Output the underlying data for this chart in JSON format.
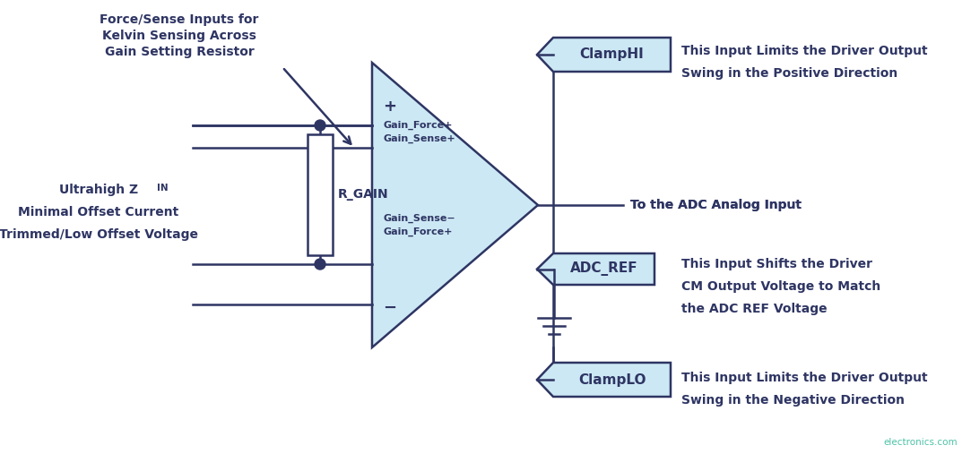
{
  "bg_color": "#ffffff",
  "dark_color": "#2e3563",
  "light_blue": "#cce8f4",
  "teal_color": "#2db898",
  "fig_width": 10.73,
  "fig_height": 5.07,
  "dpi": 100,
  "texts": {
    "force_sense_line1": "Force/Sense Inputs for",
    "force_sense_line2": "Kelvin Sensing Across",
    "force_sense_line3": "Gain Setting Resistor",
    "ultrahigh_z": "Ultrahigh Z",
    "zin_sub": "IN",
    "minimal": "Minimal Offset Current",
    "trimmed": "Trimmed/Low Offset Voltage",
    "r_gain": "R_GAIN",
    "plus": "+",
    "minus": "−",
    "gain_force_plus": "Gain_Force+",
    "gain_sense_plus": "Gain_Sense+",
    "gain_sense_minus": "Gain_Sense−",
    "gain_force_plus2": "Gain_Force+",
    "clamphi": "ClampHI",
    "clamphi_desc1": "This Input Limits the Driver Output",
    "clamphi_desc2": "Swing in the Positive Direction",
    "adc_ref": "ADC_REF",
    "adc_ref_desc1": "This Input Shifts the Driver",
    "adc_ref_desc2": "CM Output Voltage to Match",
    "adc_ref_desc3": "the ADC REF Voltage",
    "clamplo": "ClampLO",
    "clamplo_desc1": "This Input Limits the Driver Output",
    "clamplo_desc2": "Swing in the Negative Direction",
    "adc_input": "To the ADC Analog Input",
    "watermark": "electronics.com"
  }
}
